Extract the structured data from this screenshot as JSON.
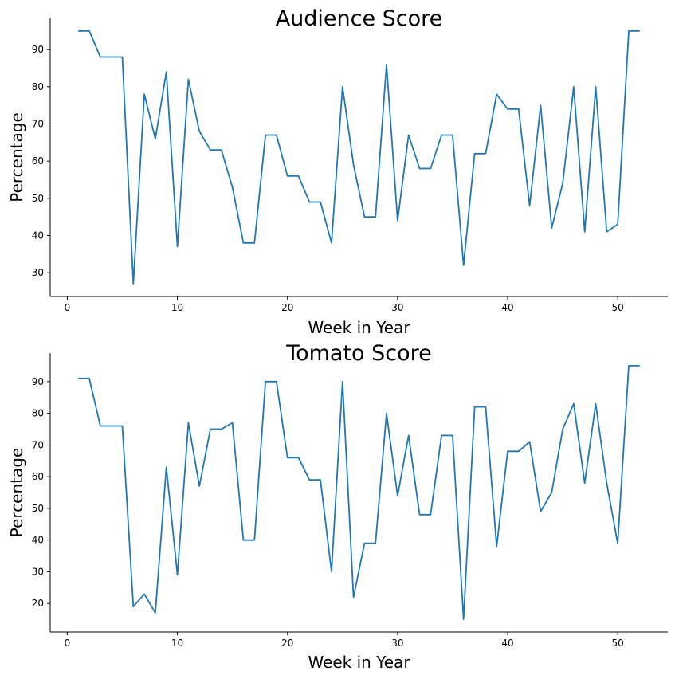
{
  "chart_data": [
    {
      "type": "line",
      "title": "Audience Score",
      "xlabel": "Week in Year",
      "ylabel": "Percentage",
      "xlim": [
        -1.55,
        54.55
      ],
      "ylim": [
        23.6,
        98.4
      ],
      "xticks": [
        0,
        10,
        20,
        30,
        40,
        50
      ],
      "yticks": [
        30,
        40,
        50,
        60,
        70,
        80,
        90
      ],
      "grid": false,
      "color": "#1f77b4",
      "x": [
        1,
        2,
        3,
        4,
        5,
        6,
        7,
        8,
        9,
        10,
        11,
        12,
        13,
        14,
        15,
        16,
        17,
        18,
        19,
        20,
        21,
        22,
        23,
        24,
        25,
        26,
        27,
        28,
        29,
        30,
        31,
        32,
        33,
        34,
        35,
        36,
        37,
        38,
        39,
        40,
        41,
        42,
        43,
        44,
        45,
        46,
        47,
        48,
        49,
        50,
        51,
        52
      ],
      "y": [
        95,
        95,
        88,
        88,
        88,
        27,
        78,
        66,
        84,
        37,
        82,
        68,
        63,
        63,
        53,
        38,
        38,
        67,
        67,
        56,
        56,
        49,
        49,
        38,
        80,
        59,
        45,
        45,
        86,
        44,
        67,
        58,
        58,
        67,
        67,
        32,
        62,
        62,
        78,
        74,
        74,
        48,
        75,
        42,
        54,
        80,
        41,
        80,
        41,
        43,
        95,
        95
      ]
    },
    {
      "type": "line",
      "title": "Tomato Score",
      "xlabel": "Week in Year",
      "ylabel": "Percentage",
      "xlim": [
        -1.55,
        54.55
      ],
      "ylim": [
        11,
        99
      ],
      "xticks": [
        0,
        10,
        20,
        30,
        40,
        50
      ],
      "yticks": [
        20,
        30,
        40,
        50,
        60,
        70,
        80,
        90
      ],
      "grid": false,
      "color": "#1f77b4",
      "x": [
        1,
        2,
        3,
        4,
        5,
        6,
        7,
        8,
        9,
        10,
        11,
        12,
        13,
        14,
        15,
        16,
        17,
        18,
        19,
        20,
        21,
        22,
        23,
        24,
        25,
        26,
        27,
        28,
        29,
        30,
        31,
        32,
        33,
        34,
        35,
        36,
        37,
        38,
        39,
        40,
        41,
        42,
        43,
        44,
        45,
        46,
        47,
        48,
        49,
        50,
        51,
        52
      ],
      "y": [
        91,
        91,
        76,
        76,
        76,
        19,
        23,
        17,
        63,
        29,
        77,
        57,
        75,
        75,
        77,
        40,
        40,
        90,
        90,
        66,
        66,
        59,
        59,
        30,
        90,
        22,
        39,
        39,
        80,
        54,
        73,
        48,
        48,
        73,
        73,
        15,
        82,
        82,
        38,
        68,
        68,
        71,
        49,
        55,
        75,
        83,
        58,
        83,
        58,
        39,
        95,
        95
      ]
    }
  ]
}
